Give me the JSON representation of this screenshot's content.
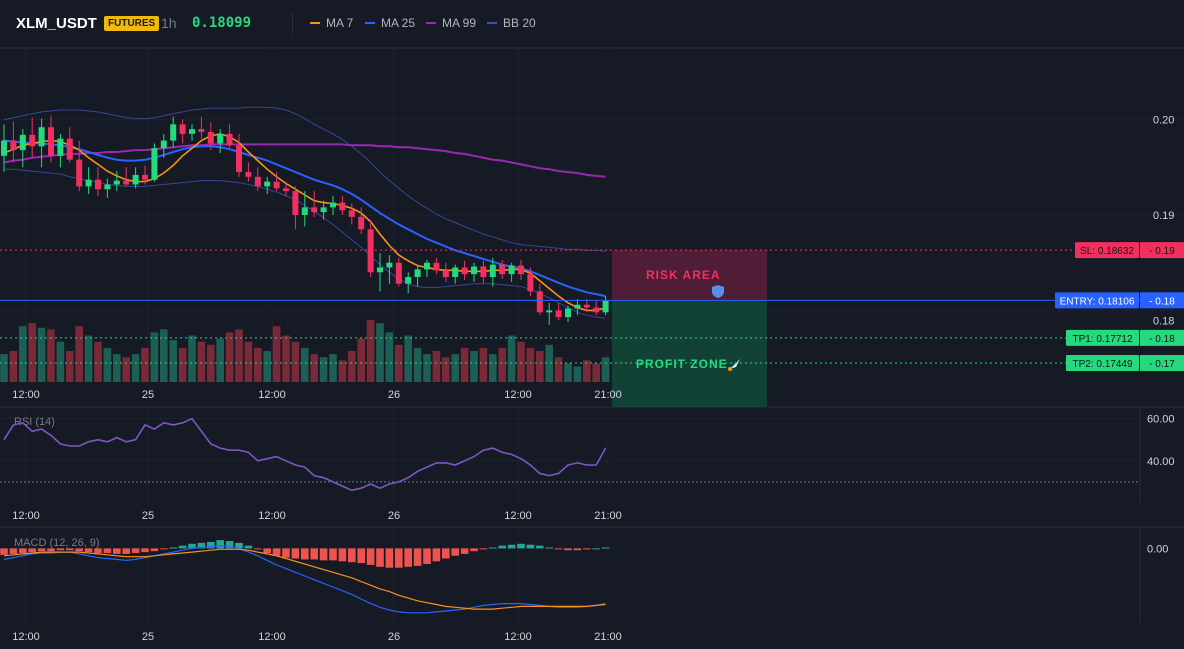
{
  "header": {
    "symbol": "XLM_USDT",
    "badge": "FUTURES",
    "interval": "1h",
    "price": "0.18099",
    "legend": [
      {
        "label": "MA 7",
        "color": "#f7931a"
      },
      {
        "label": "MA 25",
        "color": "#2962ff"
      },
      {
        "label": "MA 99",
        "color": "#9c27b0"
      },
      {
        "label": "BB 20",
        "color": "#3f51b5"
      }
    ]
  },
  "colors": {
    "up": "#26d97f",
    "down": "#f23060",
    "vol_up": "#1e6b5e",
    "vol_down": "#8b2d3c",
    "macd_hist_up": "#26a69a",
    "macd_hist_down": "#ef5350",
    "rsi": "#7e57c2",
    "macd_line": "#2962ff",
    "signal_line": "#f7931a",
    "bb": "#3f51b5",
    "sl": "#f23060",
    "entry": "#2962ff",
    "tp": "#26d97f"
  },
  "chart_data": [
    {
      "type": "candlestick",
      "panel": "price",
      "x_tick_labels": [
        "12:00",
        "25",
        "12:00",
        "26",
        "12:00",
        "21:00"
      ],
      "y_ticks": [
        "0.20",
        "0.19",
        "0.18"
      ],
      "ylim": [
        0.1725,
        0.2075
      ],
      "grid": true,
      "candles": [
        {
          "o": 0.1962,
          "h": 0.1995,
          "l": 0.1945,
          "c": 0.1978
        },
        {
          "o": 0.1978,
          "h": 0.1998,
          "l": 0.1955,
          "c": 0.1968
        },
        {
          "o": 0.1968,
          "h": 0.199,
          "l": 0.195,
          "c": 0.1984
        },
        {
          "o": 0.1984,
          "h": 0.2002,
          "l": 0.196,
          "c": 0.1972
        },
        {
          "o": 0.1972,
          "h": 0.2001,
          "l": 0.195,
          "c": 0.1992
        },
        {
          "o": 0.1992,
          "h": 0.2004,
          "l": 0.1955,
          "c": 0.1962
        },
        {
          "o": 0.1962,
          "h": 0.1985,
          "l": 0.195,
          "c": 0.198
        },
        {
          "o": 0.198,
          "h": 0.1992,
          "l": 0.1955,
          "c": 0.1958
        },
        {
          "o": 0.1958,
          "h": 0.1978,
          "l": 0.1925,
          "c": 0.193
        },
        {
          "o": 0.193,
          "h": 0.195,
          "l": 0.1922,
          "c": 0.1937
        },
        {
          "o": 0.1937,
          "h": 0.195,
          "l": 0.192,
          "c": 0.1927
        },
        {
          "o": 0.1927,
          "h": 0.1938,
          "l": 0.1918,
          "c": 0.1932
        },
        {
          "o": 0.1932,
          "h": 0.1946,
          "l": 0.1925,
          "c": 0.1936
        },
        {
          "o": 0.1936,
          "h": 0.195,
          "l": 0.193,
          "c": 0.1932
        },
        {
          "o": 0.1932,
          "h": 0.195,
          "l": 0.1928,
          "c": 0.1942
        },
        {
          "o": 0.1942,
          "h": 0.1952,
          "l": 0.1932,
          "c": 0.1937
        },
        {
          "o": 0.1937,
          "h": 0.1975,
          "l": 0.1935,
          "c": 0.197
        },
        {
          "o": 0.197,
          "h": 0.1985,
          "l": 0.196,
          "c": 0.1978
        },
        {
          "o": 0.1978,
          "h": 0.2003,
          "l": 0.197,
          "c": 0.1995
        },
        {
          "o": 0.1995,
          "h": 0.2,
          "l": 0.1975,
          "c": 0.1985
        },
        {
          "o": 0.1985,
          "h": 0.1995,
          "l": 0.1978,
          "c": 0.199
        },
        {
          "o": 0.199,
          "h": 0.2003,
          "l": 0.198,
          "c": 0.1987
        },
        {
          "o": 0.1987,
          "h": 0.1997,
          "l": 0.1968,
          "c": 0.1975
        },
        {
          "o": 0.1975,
          "h": 0.199,
          "l": 0.1965,
          "c": 0.1985
        },
        {
          "o": 0.1985,
          "h": 0.1995,
          "l": 0.197,
          "c": 0.1973
        },
        {
          "o": 0.1973,
          "h": 0.1985,
          "l": 0.194,
          "c": 0.1945
        },
        {
          "o": 0.1945,
          "h": 0.1955,
          "l": 0.1935,
          "c": 0.194
        },
        {
          "o": 0.194,
          "h": 0.195,
          "l": 0.1925,
          "c": 0.193
        },
        {
          "o": 0.193,
          "h": 0.194,
          "l": 0.1922,
          "c": 0.1935
        },
        {
          "o": 0.1935,
          "h": 0.1945,
          "l": 0.1925,
          "c": 0.1928
        },
        {
          "o": 0.1928,
          "h": 0.1935,
          "l": 0.192,
          "c": 0.1925
        },
        {
          "o": 0.1925,
          "h": 0.193,
          "l": 0.1885,
          "c": 0.19
        },
        {
          "o": 0.19,
          "h": 0.1925,
          "l": 0.1888,
          "c": 0.1908
        },
        {
          "o": 0.1908,
          "h": 0.1925,
          "l": 0.1898,
          "c": 0.1903
        },
        {
          "o": 0.1903,
          "h": 0.1915,
          "l": 0.1895,
          "c": 0.1908
        },
        {
          "o": 0.1908,
          "h": 0.192,
          "l": 0.19,
          "c": 0.1913
        },
        {
          "o": 0.1913,
          "h": 0.192,
          "l": 0.19,
          "c": 0.1905
        },
        {
          "o": 0.1905,
          "h": 0.1912,
          "l": 0.189,
          "c": 0.1898
        },
        {
          "o": 0.1898,
          "h": 0.1908,
          "l": 0.188,
          "c": 0.1885
        },
        {
          "o": 0.1885,
          "h": 0.1895,
          "l": 0.1835,
          "c": 0.184
        },
        {
          "o": 0.184,
          "h": 0.186,
          "l": 0.182,
          "c": 0.1845
        },
        {
          "o": 0.1845,
          "h": 0.1858,
          "l": 0.1828,
          "c": 0.185
        },
        {
          "o": 0.185,
          "h": 0.1855,
          "l": 0.1825,
          "c": 0.1828
        },
        {
          "o": 0.1828,
          "h": 0.184,
          "l": 0.1818,
          "c": 0.1835
        },
        {
          "o": 0.1835,
          "h": 0.1848,
          "l": 0.1825,
          "c": 0.1843
        },
        {
          "o": 0.1843,
          "h": 0.1853,
          "l": 0.1835,
          "c": 0.185
        },
        {
          "o": 0.185,
          "h": 0.1855,
          "l": 0.1838,
          "c": 0.1842
        },
        {
          "o": 0.1842,
          "h": 0.185,
          "l": 0.183,
          "c": 0.1835
        },
        {
          "o": 0.1835,
          "h": 0.1848,
          "l": 0.1828,
          "c": 0.1845
        },
        {
          "o": 0.1845,
          "h": 0.1852,
          "l": 0.1832,
          "c": 0.1838
        },
        {
          "o": 0.1838,
          "h": 0.185,
          "l": 0.183,
          "c": 0.1846
        },
        {
          "o": 0.1846,
          "h": 0.1852,
          "l": 0.1828,
          "c": 0.1835
        },
        {
          "o": 0.1835,
          "h": 0.1855,
          "l": 0.1825,
          "c": 0.1848
        },
        {
          "o": 0.1848,
          "h": 0.1853,
          "l": 0.1833,
          "c": 0.1838
        },
        {
          "o": 0.1838,
          "h": 0.185,
          "l": 0.183,
          "c": 0.1847
        },
        {
          "o": 0.1847,
          "h": 0.1853,
          "l": 0.1832,
          "c": 0.1838
        },
        {
          "o": 0.1838,
          "h": 0.1845,
          "l": 0.1815,
          "c": 0.182
        },
        {
          "o": 0.182,
          "h": 0.1828,
          "l": 0.1795,
          "c": 0.1798
        },
        {
          "o": 0.1798,
          "h": 0.1808,
          "l": 0.1785,
          "c": 0.18
        },
        {
          "o": 0.18,
          "h": 0.1808,
          "l": 0.179,
          "c": 0.1793
        },
        {
          "o": 0.1793,
          "h": 0.1805,
          "l": 0.1788,
          "c": 0.1802
        },
        {
          "o": 0.1802,
          "h": 0.1812,
          "l": 0.1795,
          "c": 0.1806
        },
        {
          "o": 0.1806,
          "h": 0.1812,
          "l": 0.1798,
          "c": 0.1803
        },
        {
          "o": 0.1803,
          "h": 0.181,
          "l": 0.1795,
          "c": 0.1798
        },
        {
          "o": 0.1798,
          "h": 0.1815,
          "l": 0.1795,
          "c": 0.181
        }
      ],
      "ma7": [
        0.1965,
        0.1969,
        0.1973,
        0.1975,
        0.1977,
        0.1978,
        0.1977,
        0.1973,
        0.1968,
        0.196,
        0.1953,
        0.1946,
        0.1941,
        0.1937,
        0.1935,
        0.1935,
        0.1938,
        0.1944,
        0.1952,
        0.1962,
        0.197,
        0.1978,
        0.1983,
        0.1985,
        0.1982,
        0.1976,
        0.1966,
        0.1957,
        0.1948,
        0.194,
        0.1933,
        0.1927,
        0.1921,
        0.1915,
        0.1913,
        0.1912,
        0.191,
        0.1907,
        0.1902,
        0.1893,
        0.188,
        0.1868,
        0.1858,
        0.1852,
        0.1847,
        0.1845,
        0.1843,
        0.1842,
        0.1842,
        0.1841,
        0.1841,
        0.1841,
        0.1842,
        0.1842,
        0.1843,
        0.1843,
        0.1839,
        0.1831,
        0.1823,
        0.1815,
        0.1808,
        0.1803,
        0.18,
        0.18,
        0.1803
      ],
      "ma25": [
        0.1978,
        0.1977,
        0.1976,
        0.1975,
        0.1975,
        0.1974,
        0.1973,
        0.1971,
        0.1969,
        0.1966,
        0.1963,
        0.196,
        0.1958,
        0.1957,
        0.1957,
        0.1958,
        0.196,
        0.1963,
        0.1966,
        0.1969,
        0.1971,
        0.1972,
        0.1972,
        0.1971,
        0.1969,
        0.1966,
        0.1963,
        0.196,
        0.1957,
        0.1953,
        0.1949,
        0.1945,
        0.1941,
        0.1937,
        0.1934,
        0.1931,
        0.1927,
        0.1922,
        0.1916,
        0.1909,
        0.1902,
        0.1896,
        0.189,
        0.1885,
        0.188,
        0.1875,
        0.1871,
        0.1867,
        0.1863,
        0.186,
        0.1857,
        0.1854,
        0.1851,
        0.1848,
        0.1846,
        0.1844,
        0.1841,
        0.1837,
        0.1833,
        0.1829,
        0.1825,
        0.1822,
        0.1819,
        0.1817,
        0.1815
      ],
      "ma99": [
        0.1955,
        0.1957,
        0.1958,
        0.196,
        0.1961,
        0.1962,
        0.1963,
        0.1964,
        0.1964,
        0.1965,
        0.1965,
        0.1966,
        0.1966,
        0.1967,
        0.1968,
        0.1968,
        0.1969,
        0.197,
        0.1971,
        0.1972,
        0.1973,
        0.1973,
        0.1974,
        0.1974,
        0.1974,
        0.1974,
        0.1974,
        0.1974,
        0.1974,
        0.1974,
        0.1974,
        0.1974,
        0.1974,
        0.1974,
        0.1974,
        0.1974,
        0.1974,
        0.1973,
        0.1973,
        0.1973,
        0.1972,
        0.1972,
        0.1971,
        0.1971,
        0.197,
        0.1969,
        0.1968,
        0.1967,
        0.1965,
        0.1964,
        0.1962,
        0.196,
        0.1958,
        0.1957,
        0.1955,
        0.1953,
        0.1951,
        0.1949,
        0.1948,
        0.1946,
        0.1945,
        0.1944,
        0.1942,
        0.1941,
        0.194
      ],
      "bb_upper": [
        0.2,
        0.2002,
        0.2004,
        0.2006,
        0.2008,
        0.2009,
        0.201,
        0.201,
        0.201,
        0.2009,
        0.2008,
        0.2006,
        0.2004,
        0.2002,
        0.2001,
        0.2001,
        0.2002,
        0.2004,
        0.2006,
        0.2008,
        0.201,
        0.2011,
        0.2012,
        0.2012,
        0.2012,
        0.2012,
        0.2013,
        0.2013,
        0.2013,
        0.2012,
        0.201,
        0.2006,
        0.2001,
        0.1995,
        0.199,
        0.1985,
        0.1979,
        0.1972,
        0.1964,
        0.1955,
        0.1945,
        0.1936,
        0.1928,
        0.192,
        0.1913,
        0.1907,
        0.1901,
        0.1896,
        0.1892,
        0.1888,
        0.1884,
        0.188,
        0.1877,
        0.1874,
        0.1871,
        0.1869,
        0.1868,
        0.1867,
        0.1866,
        0.1865,
        0.1864,
        0.1864,
        0.1863,
        0.1863,
        0.1862
      ],
      "bb_lower": [
        0.1948,
        0.1948,
        0.1947,
        0.1946,
        0.1945,
        0.1944,
        0.1943,
        0.194,
        0.1938,
        0.1936,
        0.1934,
        0.1932,
        0.1931,
        0.193,
        0.193,
        0.193,
        0.1931,
        0.1932,
        0.1933,
        0.1934,
        0.1935,
        0.1936,
        0.1936,
        0.1936,
        0.1935,
        0.1934,
        0.1932,
        0.193,
        0.1927,
        0.1924,
        0.192,
        0.1916,
        0.191,
        0.1904,
        0.1897,
        0.189,
        0.1882,
        0.1874,
        0.1866,
        0.1857,
        0.1848,
        0.184,
        0.1833,
        0.1828,
        0.1825,
        0.1824,
        0.1824,
        0.1825,
        0.1826,
        0.1827,
        0.1828,
        0.1828,
        0.1828,
        0.1827,
        0.1826,
        0.1825,
        0.1822,
        0.1818,
        0.1813,
        0.1808,
        0.1803,
        0.1798,
        0.1795,
        0.1793,
        0.1792
      ],
      "volume": [
        18,
        20,
        36,
        38,
        35,
        34,
        26,
        20,
        36,
        30,
        26,
        22,
        18,
        16,
        18,
        22,
        32,
        34,
        27,
        22,
        30,
        26,
        24,
        28,
        32,
        34,
        26,
        22,
        20,
        36,
        30,
        26,
        22,
        18,
        16,
        18,
        14,
        20,
        28,
        40,
        38,
        32,
        24,
        30,
        22,
        18,
        20,
        16,
        18,
        22,
        20,
        22,
        18,
        22,
        30,
        26,
        22,
        20,
        24,
        16,
        12,
        10,
        14,
        12,
        16
      ],
      "levels": {
        "sl": {
          "value": 0.18632,
          "label": "SL: 0.18632",
          "axis": "0.19"
        },
        "entry": {
          "value": 0.18106,
          "label": "ENTRY: 0.18106",
          "axis": "0.18"
        },
        "tp1": {
          "value": 0.17712,
          "label": "TP1: 0.17712",
          "axis": "0.18"
        },
        "tp2": {
          "value": 0.17449,
          "label": "TP2: 0.17449",
          "axis": "0.17"
        }
      },
      "zones": {
        "risk_label": "RISK AREA",
        "profit_label": "PROFIT ZONE"
      }
    },
    {
      "type": "line",
      "panel": "rsi",
      "title": "RSI (14)",
      "y_ticks": [
        "60.00",
        "40.00"
      ],
      "ylim": [
        20,
        65
      ],
      "reference_line": 30,
      "x_tick_labels": [
        "12:00",
        "25",
        "12:00",
        "26",
        "12:00",
        "21:00"
      ],
      "values": [
        50,
        57,
        58,
        54,
        55,
        52,
        48,
        47,
        47,
        49,
        50,
        49,
        51,
        49,
        50,
        57,
        55,
        58,
        57,
        58,
        60,
        54,
        48,
        46,
        45,
        45,
        44,
        40,
        41,
        42,
        40,
        38,
        37,
        33,
        32,
        30,
        28,
        26,
        27,
        29,
        27,
        29,
        30,
        32,
        35,
        37,
        39,
        39,
        38,
        40,
        42,
        45,
        46,
        44,
        43,
        41,
        38,
        34,
        33,
        34,
        38,
        39,
        38,
        38,
        46
      ]
    },
    {
      "type": "bar_line",
      "panel": "macd",
      "title": "MACD (12, 26, 9)",
      "y_ticks": [
        "0.00"
      ],
      "ylim": [
        -0.008,
        0.002
      ],
      "x_tick_labels": [
        "12:00",
        "25",
        "12:00",
        "26",
        "12:00",
        "21:00"
      ],
      "histogram": [
        -0.0007,
        -0.0006,
        -0.0005,
        -0.0004,
        -0.0003,
        -0.0003,
        -0.0002,
        -0.0002,
        -0.0003,
        -0.0004,
        -0.0005,
        -0.0005,
        -0.0006,
        -0.0006,
        -0.0005,
        -0.0004,
        -0.0003,
        -0.0001,
        0.0001,
        0.0003,
        0.0005,
        0.0006,
        0.0007,
        0.0009,
        0.0008,
        0.0006,
        0.0003,
        -0.0001,
        -0.0005,
        -0.0008,
        -0.001,
        -0.0011,
        -0.0012,
        -0.0012,
        -0.0013,
        -0.0013,
        -0.0014,
        -0.0015,
        -0.0016,
        -0.0018,
        -0.002,
        -0.0021,
        -0.0021,
        -0.002,
        -0.0019,
        -0.0017,
        -0.0014,
        -0.0011,
        -0.0008,
        -0.0006,
        -0.0003,
        -0.0001,
        0.0001,
        0.0003,
        0.0004,
        0.0005,
        0.0004,
        0.0003,
        0.0001,
        -0.0001,
        -0.0002,
        -0.0002,
        -0.0001,
        0.0,
        0.0001
      ],
      "macd_line": [
        -0.0012,
        -0.001,
        -0.0008,
        -0.0006,
        -0.0005,
        -0.0005,
        -0.0004,
        -0.0004,
        -0.0006,
        -0.0008,
        -0.001,
        -0.0011,
        -0.0012,
        -0.0013,
        -0.0012,
        -0.001,
        -0.0008,
        -0.0006,
        -0.0004,
        -0.0002,
        0.0,
        0.0001,
        0.0002,
        0.0003,
        0.0002,
        0.0,
        -0.0004,
        -0.0008,
        -0.0013,
        -0.0018,
        -0.0022,
        -0.0026,
        -0.003,
        -0.0034,
        -0.0038,
        -0.0042,
        -0.0046,
        -0.005,
        -0.0055,
        -0.006,
        -0.0064,
        -0.0067,
        -0.0069,
        -0.007,
        -0.007,
        -0.007,
        -0.0069,
        -0.0068,
        -0.0067,
        -0.0066,
        -0.0064,
        -0.0062,
        -0.0061,
        -0.006,
        -0.006,
        -0.006,
        -0.0061,
        -0.0062,
        -0.0063,
        -0.0064,
        -0.0064,
        -0.0064,
        -0.0063,
        -0.0062,
        -0.006
      ],
      "signal_line": [
        -0.0008,
        -0.0007,
        -0.0006,
        -0.0005,
        -0.0004,
        -0.0004,
        -0.0004,
        -0.0004,
        -0.0004,
        -0.0005,
        -0.0006,
        -0.0007,
        -0.0008,
        -0.0009,
        -0.0009,
        -0.0009,
        -0.0008,
        -0.0007,
        -0.0006,
        -0.0005,
        -0.0004,
        -0.0003,
        -0.0002,
        -0.0001,
        -0.0001,
        -0.0001,
        -0.0002,
        -0.0004,
        -0.0006,
        -0.0008,
        -0.0011,
        -0.0014,
        -0.0017,
        -0.002,
        -0.0023,
        -0.0026,
        -0.0029,
        -0.0032,
        -0.0036,
        -0.004,
        -0.0044,
        -0.0047,
        -0.0051,
        -0.0054,
        -0.0057,
        -0.0059,
        -0.0061,
        -0.0063,
        -0.0064,
        -0.0065,
        -0.0066,
        -0.0066,
        -0.0066,
        -0.0065,
        -0.0064,
        -0.0063,
        -0.0063,
        -0.0063,
        -0.0063,
        -0.0063,
        -0.0063,
        -0.0063,
        -0.0063,
        -0.0062,
        -0.0061
      ]
    }
  ]
}
